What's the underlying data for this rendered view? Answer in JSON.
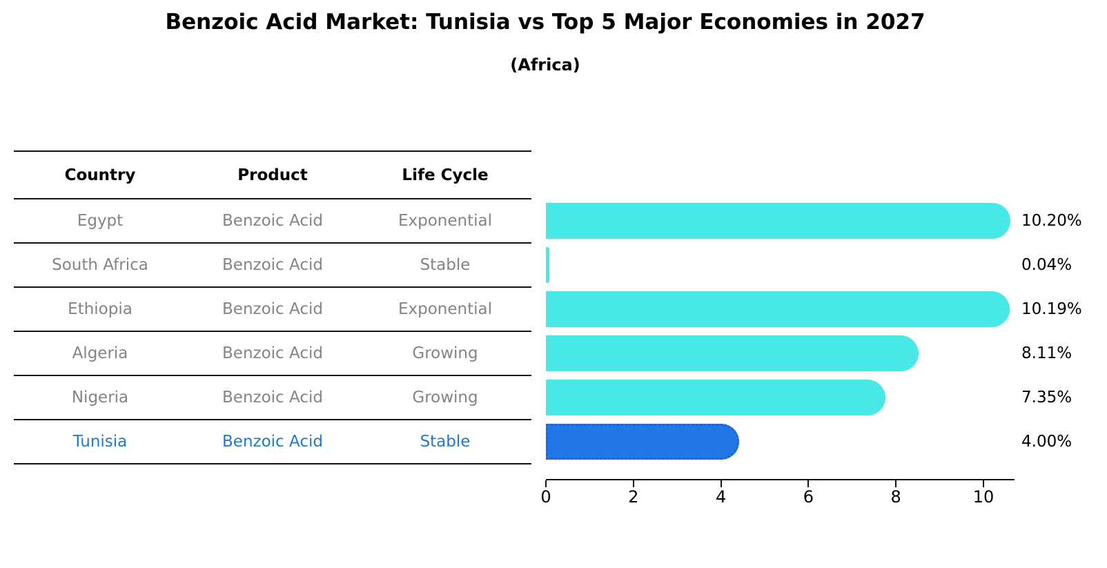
{
  "title": "Benzoic Acid Market: Tunisia vs Top 5 Major Economies in 2027",
  "subtitle": "(Africa)",
  "table": {
    "headers": [
      "Country",
      "Product",
      "Life Cycle"
    ],
    "rows": [
      {
        "country": "Egypt",
        "product": "Benzoic Acid",
        "life_cycle": "Exponential",
        "highlight": false
      },
      {
        "country": "South Africa",
        "product": "Benzoic Acid",
        "life_cycle": "Stable",
        "highlight": false
      },
      {
        "country": "Ethiopia",
        "product": "Benzoic Acid",
        "life_cycle": "Exponential",
        "highlight": false
      },
      {
        "country": "Algeria",
        "product": "Benzoic Acid",
        "life_cycle": "Growing",
        "highlight": false
      },
      {
        "country": "Nigeria",
        "product": "Benzoic Acid",
        "life_cycle": "Growing",
        "highlight": true,
        "highlight_note": null
      },
      {
        "country": "Tunisia",
        "product": "Benzoic Acid",
        "life_cycle": "Stable",
        "highlight": true
      }
    ]
  },
  "chart_data": {
    "type": "bar",
    "orientation": "horizontal",
    "categories": [
      "Egypt",
      "South Africa",
      "Ethiopia",
      "Algeria",
      "Nigeria",
      "Tunisia"
    ],
    "values": [
      10.2,
      0.04,
      10.19,
      8.11,
      7.35,
      4.0
    ],
    "value_labels": [
      "10.20%",
      "0.04%",
      "10.19%",
      "8.11%",
      "7.35%",
      "4.00%"
    ],
    "x_ticks": [
      "0",
      "2",
      "4",
      "6",
      "8",
      "10"
    ],
    "xlim": [
      0,
      10.7
    ],
    "grid": false,
    "legend": false,
    "title": "Benzoic Acid Market: Tunisia vs Top 5 Major Economies in 2027",
    "subtitle": "(Africa)",
    "bar_color": "#48e8e6",
    "highlight_bar_color": "#2277e8",
    "highlight_index": 5
  },
  "colors": {
    "normal_bar": "#48e8e6",
    "highlight_bar": "#2277e8",
    "highlight_text": "#1f7ac9",
    "row_text": "#848484",
    "line": "#141414"
  }
}
